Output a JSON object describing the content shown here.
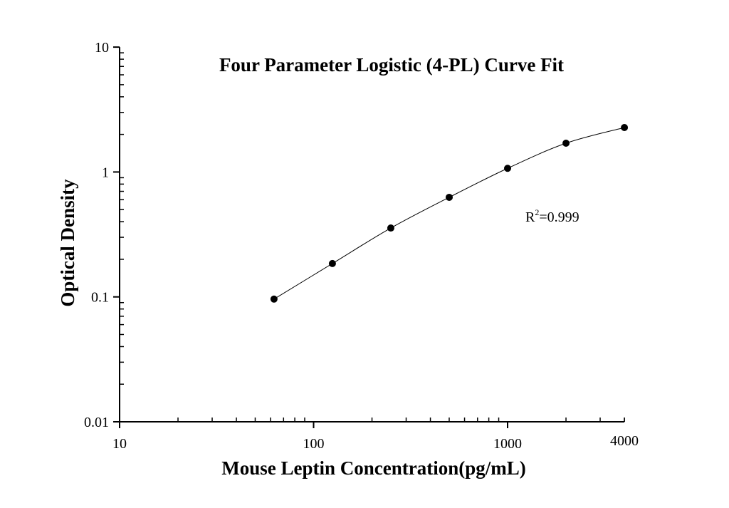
{
  "chart_data": {
    "type": "scatter",
    "title": "Four Parameter Logistic (4-PL) Curve Fit",
    "xlabel": "Mouse Leptin Concentration(pg/mL)",
    "ylabel": "Optical Density",
    "x_scale": "log",
    "y_scale": "log",
    "xlim": [
      10,
      4000
    ],
    "ylim": [
      0.01,
      10
    ],
    "x_ticks": [
      10,
      100,
      1000,
      4000
    ],
    "x_tick_labels": [
      "10",
      "100",
      "1000",
      "4000"
    ],
    "y_ticks": [
      0.01,
      0.1,
      1,
      10
    ],
    "y_tick_labels": [
      "0.01",
      "0.1",
      "1",
      "10"
    ],
    "grid": false,
    "annotation": {
      "base": "R",
      "sup": "2",
      "text": "=0.999"
    },
    "series": [
      {
        "x": [
          62.5,
          125,
          250,
          500,
          1000,
          2000,
          4000
        ],
        "y": [
          0.096,
          0.185,
          0.356,
          0.627,
          1.07,
          1.7,
          2.27
        ],
        "marker": "filled-circle",
        "fit": "4-PL curve",
        "color": "#000000"
      }
    ]
  }
}
